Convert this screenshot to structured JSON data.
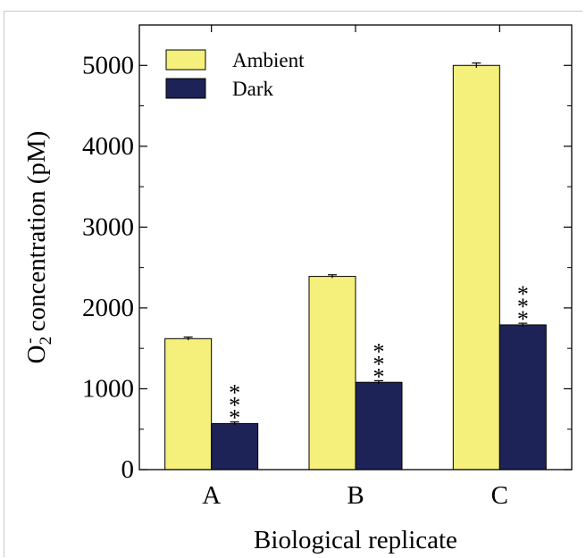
{
  "chart_data": {
    "type": "bar",
    "categories": [
      "A",
      "B",
      "C"
    ],
    "series": [
      {
        "name": "Ambient",
        "values": [
          1620,
          2390,
          5000
        ],
        "errors": [
          20,
          20,
          30
        ],
        "color": "#f5ef7c",
        "significance": [
          "",
          "",
          ""
        ]
      },
      {
        "name": "Dark",
        "values": [
          570,
          1080,
          1790
        ],
        "errors": [
          20,
          20,
          20
        ],
        "color": "#1d2357",
        "significance": [
          "***",
          "***",
          "***"
        ]
      }
    ],
    "xlabel": "Biological replicate",
    "ylabel": {
      "base": "O",
      "sub": "2",
      "sup": "-",
      "rest": " concentration (pM)"
    },
    "ylim": [
      0,
      5500
    ],
    "yticks": [
      0,
      1000,
      2000,
      3000,
      4000,
      5000
    ],
    "grid": false,
    "legend_position": "top-left"
  }
}
